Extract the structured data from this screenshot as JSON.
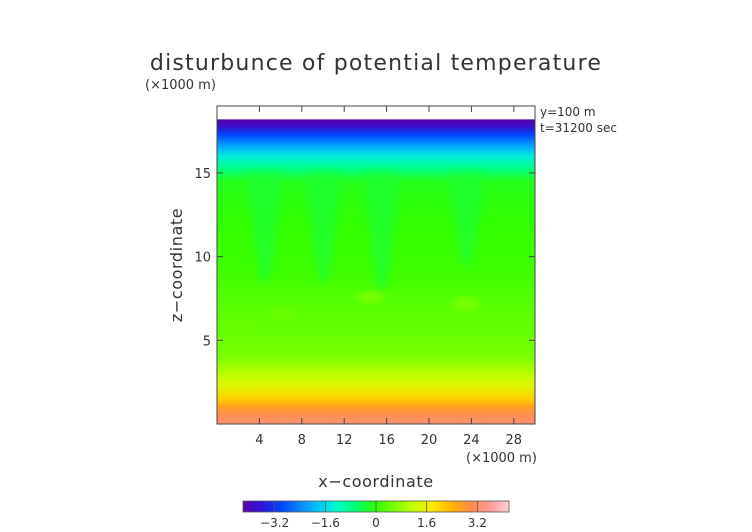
{
  "chart_data": {
    "type": "heatmap",
    "title": "disturbunce of potential temperature",
    "scale_note": "(×1000 m)",
    "x_scale_note": "(×1000 m)",
    "annotations": [
      "y=100 m",
      "t=31200 sec"
    ],
    "xlabel": "x−coordinate",
    "ylabel": "z−coordinate",
    "xlim": [
      0,
      30
    ],
    "ylim": [
      0,
      19
    ],
    "x_ticks": [
      4,
      8,
      12,
      16,
      20,
      24,
      28
    ],
    "y_ticks": [
      5,
      10,
      15
    ],
    "colorbar": {
      "ticks": [
        -3.2,
        -1.6,
        0,
        1.6,
        3.2
      ],
      "tick_labels": [
        "−3.2",
        "−1.6",
        "0",
        "1.6",
        "3.2"
      ],
      "range": [
        -4.2,
        4.2
      ],
      "colors": [
        "#5a00a8",
        "#2d13d8",
        "#0044ff",
        "#0a86ff",
        "#00c8ff",
        "#00ffc8",
        "#00ff6a",
        "#33ff00",
        "#7cff00",
        "#c8ff00",
        "#ffe800",
        "#ffb400",
        "#ff8a48",
        "#ff9a9a",
        "#ffd0d0"
      ]
    },
    "profile": [
      {
        "z": 0,
        "value": 3.3
      },
      {
        "z": 0.5,
        "value": 3.1
      },
      {
        "z": 1.0,
        "value": 2.7
      },
      {
        "z": 1.5,
        "value": 2.1
      },
      {
        "z": 2.2,
        "value": 1.5
      },
      {
        "z": 3.0,
        "value": 1.1
      },
      {
        "z": 4.0,
        "value": 0.6
      },
      {
        "z": 5.5,
        "value": 0.4
      },
      {
        "z": 7.0,
        "value": 0.3
      },
      {
        "z": 9.0,
        "value": 0.1
      },
      {
        "z": 12.0,
        "value": 0.0
      },
      {
        "z": 14.5,
        "value": -0.15
      },
      {
        "z": 15.3,
        "value": -0.8
      },
      {
        "z": 16.0,
        "value": -1.4
      },
      {
        "z": 16.6,
        "value": -2.1
      },
      {
        "z": 17.3,
        "value": -3.0
      },
      {
        "z": 17.8,
        "value": -3.8
      },
      {
        "z": 18.2,
        "value": -4.2
      }
    ],
    "data_top": 18.2,
    "plumes": [
      {
        "x": 4.5,
        "z_top": 15.0,
        "z_bottom": 8.5,
        "value": -0.3
      },
      {
        "x": 10.0,
        "z_top": 15.0,
        "z_bottom": 8.5,
        "value": -0.3
      },
      {
        "x": 15.5,
        "z_top": 15.0,
        "z_bottom": 8.0,
        "value": -0.3
      },
      {
        "x": 23.5,
        "z_top": 15.0,
        "z_bottom": 9.5,
        "value": -0.3
      }
    ],
    "warm_spots": [
      {
        "x": 14.5,
        "z": 7.6,
        "value": 0.7
      },
      {
        "x": 23.5,
        "z": 7.2,
        "value": 0.7
      },
      {
        "x": 6.0,
        "z": 6.6,
        "value": 0.5
      },
      {
        "x": 2.0,
        "z": 5.8,
        "value": 0.5
      }
    ]
  }
}
